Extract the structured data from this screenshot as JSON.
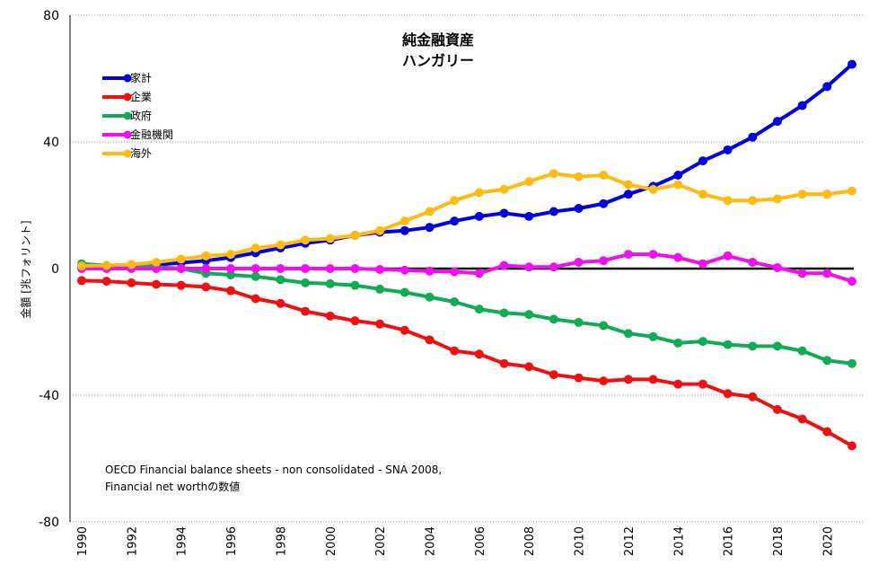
{
  "chart_data": {
    "type": "line",
    "title": "純金融資産",
    "subtitle": "ハンガリー",
    "ylabel": "金額 [兆フォリント]",
    "xlabel": "",
    "ylim": [
      -80,
      80
    ],
    "yticks": [
      80,
      40,
      0,
      -40,
      -80
    ],
    "xticks": [
      1990,
      1992,
      1994,
      1996,
      1998,
      2000,
      2002,
      2004,
      2006,
      2008,
      2010,
      2012,
      2014,
      2016,
      2018,
      2020
    ],
    "xlim": [
      1990,
      2021
    ],
    "legend_position": "top-left",
    "grid": "horizontal dotted",
    "note_lines": [
      "OECD Financial balance sheets - non consolidated - SNA 2008,",
      "Financial net worthの数値"
    ],
    "x": [
      1990,
      1991,
      1992,
      1993,
      1994,
      1995,
      1996,
      1997,
      1998,
      1999,
      2000,
      2001,
      2002,
      2003,
      2004,
      2005,
      2006,
      2007,
      2008,
      2009,
      2010,
      2011,
      2012,
      2013,
      2014,
      2015,
      2016,
      2017,
      2018,
      2019,
      2020,
      2021
    ],
    "series": [
      {
        "name": "家計",
        "color": "#0000dd",
        "values": [
          0.5,
          0.5,
          0.8,
          1.2,
          1.8,
          2.5,
          3.5,
          5,
          6.5,
          8,
          9,
          10.5,
          11.5,
          12,
          13,
          15,
          16.5,
          17.5,
          16.5,
          18,
          19,
          20.5,
          23.5,
          26,
          29.5,
          34,
          37.5,
          41.5,
          46.5,
          51.5,
          57.5,
          64.5
        ]
      },
      {
        "name": "企業",
        "color": "#ee1111",
        "values": [
          -3.8,
          -4,
          -4.5,
          -5,
          -5.3,
          -5.8,
          -7,
          -9.5,
          -11,
          -13.5,
          -15,
          -16.5,
          -17.5,
          -19.5,
          -22.5,
          -26,
          -27,
          -30,
          -31,
          -33.5,
          -34.5,
          -35.5,
          -35,
          -35,
          -36.5,
          -36.5,
          -39.5,
          -40.5,
          -44.5,
          -47.5,
          -51.5,
          -56
        ]
      },
      {
        "name": "政府",
        "color": "#11aa55",
        "values": [
          1.5,
          1,
          0.8,
          0.5,
          0,
          -1.5,
          -2,
          -2.5,
          -3.5,
          -4.5,
          -4.8,
          -5.3,
          -6.5,
          -7.5,
          -9,
          -10.5,
          -12.8,
          -14,
          -14.5,
          -16,
          -17,
          -18,
          -20.5,
          -21.5,
          -23.5,
          -23,
          -24,
          -24.5,
          -24.5,
          -26,
          -29,
          -30
        ]
      },
      {
        "name": "金融機関",
        "color": "#ee11ee",
        "values": [
          0,
          0,
          0,
          0,
          0,
          0,
          0,
          0,
          0,
          0,
          0,
          0,
          -0.3,
          -0.5,
          -0.8,
          -1,
          -1.5,
          1,
          0.5,
          0.5,
          2,
          2.5,
          4.5,
          4.5,
          3.5,
          1.5,
          4,
          2,
          0.3,
          -1.5,
          -1.5,
          -4
        ]
      },
      {
        "name": "海外",
        "color": "#ffbb11",
        "values": [
          0.8,
          1,
          1.3,
          2,
          3,
          4,
          4.5,
          6.5,
          7.5,
          9,
          9.5,
          10.5,
          12,
          15,
          18,
          21.5,
          24,
          25,
          27.5,
          30,
          29,
          29.5,
          26.5,
          25,
          26.5,
          23.5,
          21.5,
          21.5,
          22,
          23.5,
          23.5,
          24.5
        ]
      }
    ]
  }
}
